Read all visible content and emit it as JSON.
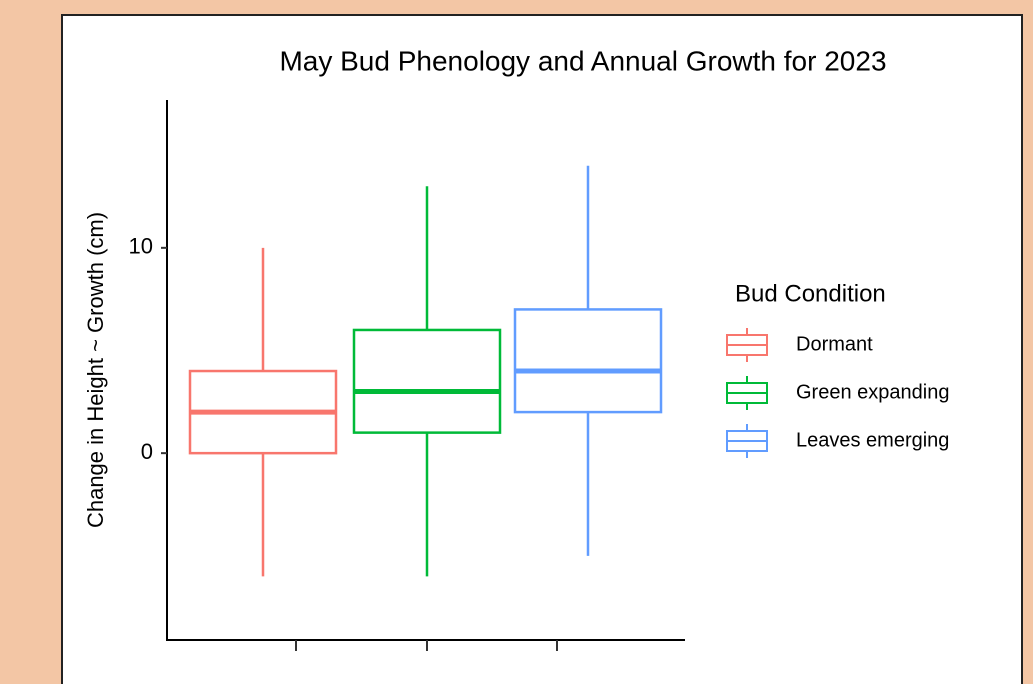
{
  "chart_data": {
    "type": "box",
    "title": "May Bud Phenology and Annual Growth for 2023",
    "y_label": "Change in Height ~ Growth (cm)",
    "legend_title": "Bud Condition",
    "categories": [
      null,
      null,
      null
    ],
    "ylim": [
      -9.1,
      17.2
    ],
    "yticks": [
      0,
      10
    ],
    "series": [
      {
        "name": "Dormant",
        "color": "#f8766d",
        "min": -6,
        "q1": 0,
        "median": 2,
        "q3": 4,
        "max": 10
      },
      {
        "name": "Green expanding",
        "color": "#00ba38",
        "min": -6,
        "q1": 1,
        "median": 3,
        "q3": 6,
        "max": 13
      },
      {
        "name": "Leaves emerging",
        "color": "#619cff",
        "min": -5,
        "q1": 2,
        "median": 4,
        "q3": 7,
        "max": 14
      }
    ]
  }
}
